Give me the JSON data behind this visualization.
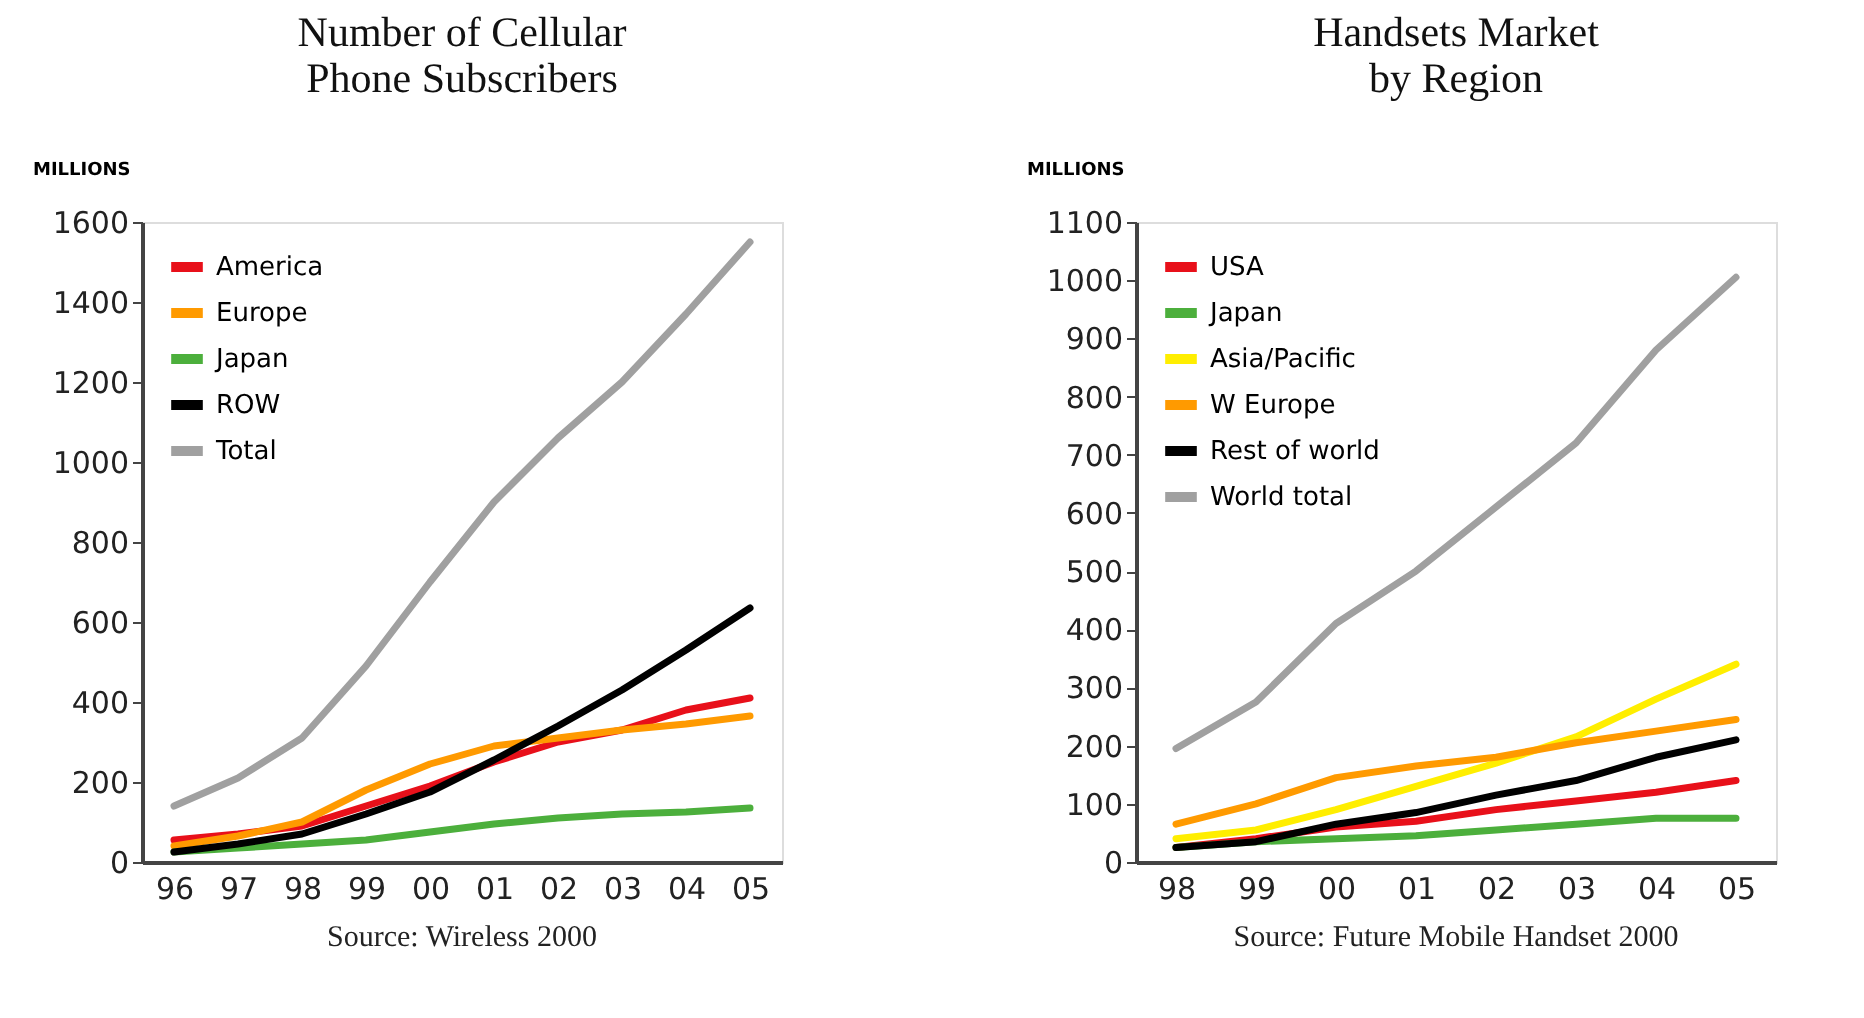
{
  "chart_data": [
    {
      "type": "line",
      "title": "Number of Cellular\nPhone Subscribers",
      "ylabel": "MILLIONS",
      "categories": [
        "96",
        "97",
        "98",
        "99",
        "00",
        "01",
        "02",
        "03",
        "04",
        "05"
      ],
      "ylim": [
        0,
        1600
      ],
      "yticks": [
        0,
        200,
        400,
        600,
        800,
        1000,
        1200,
        1400,
        1600
      ],
      "legend": "top left",
      "annotations": [
        "Source: Wireless 2000"
      ],
      "series": [
        {
          "name": "America",
          "color": "#e8101a",
          "values": [
            55,
            70,
            90,
            140,
            190,
            250,
            300,
            330,
            380,
            410
          ]
        },
        {
          "name": "Europe",
          "color": "#ff9a00",
          "values": [
            40,
            65,
            100,
            180,
            245,
            290,
            310,
            330,
            345,
            365
          ]
        },
        {
          "name": "Japan",
          "color": "#4caf3c",
          "values": [
            25,
            35,
            45,
            55,
            75,
            95,
            110,
            120,
            125,
            135
          ]
        },
        {
          "name": "ROW",
          "color": "#000000",
          "values": [
            25,
            45,
            70,
            120,
            175,
            255,
            340,
            430,
            530,
            635
          ]
        },
        {
          "name": "Total",
          "color": "#a0a0a0",
          "values": [
            140,
            210,
            310,
            490,
            700,
            900,
            1060,
            1200,
            1370,
            1550
          ]
        }
      ]
    },
    {
      "type": "line",
      "title": "Handsets Market\nby Region",
      "ylabel": "MILLIONS",
      "categories": [
        "98",
        "99",
        "00",
        "01",
        "02",
        "03",
        "04",
        "05"
      ],
      "ylim": [
        0,
        1100
      ],
      "yticks": [
        0,
        100,
        200,
        300,
        400,
        500,
        600,
        700,
        800,
        900,
        1000,
        1100
      ],
      "legend": "top left",
      "annotations": [
        "Source: Future Mobile Handset 2000"
      ],
      "series": [
        {
          "name": "USA",
          "color": "#e8101a",
          "values": [
            25,
            40,
            60,
            70,
            90,
            105,
            120,
            140
          ]
        },
        {
          "name": "Japan",
          "color": "#4caf3c",
          "values": [
            25,
            35,
            40,
            45,
            55,
            65,
            75,
            75
          ]
        },
        {
          "name": "Asia/Pacific",
          "color": "#ffee00",
          "values": [
            40,
            55,
            90,
            130,
            170,
            215,
            280,
            340
          ]
        },
        {
          "name": "W Europe",
          "color": "#ff9a00",
          "values": [
            65,
            100,
            145,
            165,
            180,
            205,
            225,
            245
          ]
        },
        {
          "name": "Rest of world",
          "color": "#000000",
          "values": [
            25,
            35,
            65,
            85,
            115,
            140,
            180,
            210
          ]
        },
        {
          "name": "World total",
          "color": "#a0a0a0",
          "values": [
            195,
            275,
            410,
            500,
            610,
            720,
            880,
            1005
          ]
        }
      ]
    }
  ]
}
